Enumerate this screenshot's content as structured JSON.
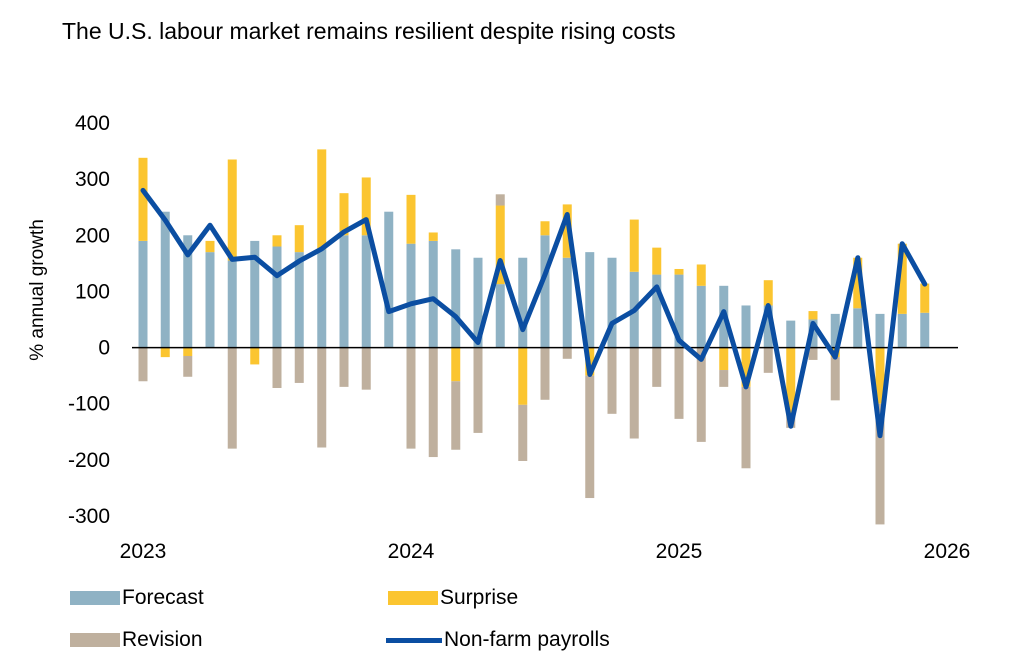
{
  "chart_data": {
    "type": "bar",
    "title": "The U.S. labour market remains resilient despite rising costs",
    "ylabel": "% annual growth",
    "xlabel": "",
    "ylim": [
      -300,
      400
    ],
    "yticks": [
      400,
      300,
      200,
      100,
      0,
      -100,
      -200,
      -300
    ],
    "x_tick_labels": [
      "2023",
      "2024",
      "2025",
      "2026"
    ],
    "x_tick_values": [
      2023,
      2024,
      2025,
      2026
    ],
    "colors": {
      "forecast": "#8fb2c4",
      "surprise": "#fbc530",
      "revision": "#bfb09e",
      "payrolls": "#0b4ea2"
    },
    "x": [
      2023.0,
      2023.083,
      2023.167,
      2023.25,
      2023.333,
      2023.417,
      2023.5,
      2023.583,
      2023.667,
      2023.75,
      2023.833,
      2023.917,
      2024.0,
      2024.083,
      2024.167,
      2024.25,
      2024.333,
      2024.417,
      2024.5,
      2024.583,
      2024.667,
      2024.75,
      2024.833,
      2024.917,
      2025.0,
      2025.083,
      2025.167,
      2025.25,
      2025.333,
      2025.417,
      2025.5,
      2025.583,
      2025.667,
      2025.75,
      2025.833,
      2025.917
    ],
    "series": [
      {
        "name": "Forecast",
        "values": [
          190,
          242,
          200,
          170,
          155,
          190,
          180,
          170,
          175,
          200,
          200,
          242,
          185,
          190,
          175,
          160,
          113,
          160,
          200,
          160,
          170,
          160,
          135,
          130,
          130,
          110,
          110,
          75,
          75,
          48,
          50,
          60,
          70,
          60,
          60,
          62
        ]
      },
      {
        "name": "Surprise",
        "values": [
          148,
          -17,
          -15,
          20,
          180,
          -30,
          20,
          48,
          178,
          75,
          103,
          0,
          87,
          15,
          -60,
          0,
          140,
          -102,
          25,
          95,
          -50,
          0,
          93,
          48,
          10,
          38,
          -40,
          -70,
          45,
          -123,
          15,
          -17,
          90,
          -100,
          125,
          52
        ]
      },
      {
        "name": "Revision",
        "values": [
          -60,
          0,
          -37,
          0,
          -180,
          0,
          -72,
          -63,
          -178,
          -70,
          -75,
          0,
          -180,
          -195,
          -122,
          -152,
          20,
          -100,
          -93,
          -20,
          -218,
          -118,
          -162,
          -70,
          -127,
          -168,
          -30,
          -145,
          -45,
          -20,
          -22,
          -77,
          -2,
          -215,
          0,
          0
        ]
      },
      {
        "name": "Non-farm payrolls",
        "values": [
          280,
          227,
          165,
          218,
          157,
          161,
          128,
          154,
          176,
          206,
          228,
          64,
          78,
          87,
          55,
          9,
          155,
          32,
          130,
          237,
          -48,
          43,
          66,
          108,
          13,
          -21,
          64,
          -70,
          75,
          -140,
          43,
          -17,
          160,
          -157,
          185,
          113
        ]
      }
    ],
    "legend": [
      "Forecast",
      "Surprise",
      "Revision",
      "Non-farm payrolls"
    ],
    "grid": false,
    "legend_position": "bottom"
  }
}
